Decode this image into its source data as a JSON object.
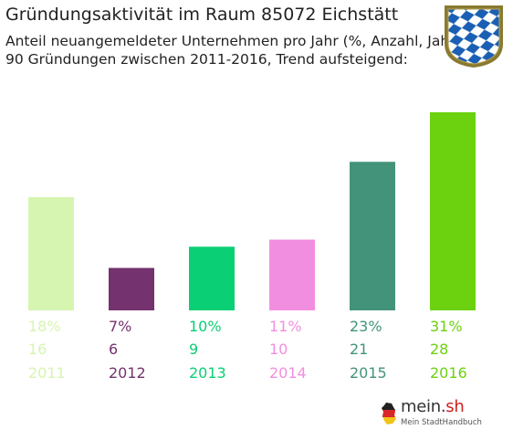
{
  "header": {
    "title": "Gründungsaktivität im Raum 85072 Eichstätt",
    "subtitle_lines": [
      "Anteil neuangemeldeter Unternehmen pro Jahr (%, Anzahl, Jahr)",
      "90 Gründungen zwischen 2011-2016, Trend aufsteigend:"
    ]
  },
  "chart_data": {
    "type": "bar",
    "categories": [
      "2011",
      "2012",
      "2013",
      "2014",
      "2015",
      "2016"
    ],
    "values": [
      16,
      6,
      9,
      10,
      21,
      28
    ],
    "percent_labels": [
      "18%",
      "7%",
      "10%",
      "11%",
      "23%",
      "31%"
    ],
    "count_labels": [
      "16",
      "6",
      "9",
      "10",
      "21",
      "28"
    ],
    "colors": [
      "#d6f5b0",
      "#74326e",
      "#0bcf74",
      "#f28ee0",
      "#43937a",
      "#6cd10e"
    ],
    "ylim": [
      0,
      28
    ],
    "grid": false,
    "legend": "none"
  },
  "crest": {
    "icon": "bavarian-lozenge-crest-icon",
    "colors": [
      "#1a5fb4",
      "#ffffff",
      "#8a7a30"
    ]
  },
  "brand": {
    "name_main": "mein.",
    "name_suffix": "sh",
    "tagline": "Mein StadtHandbuch",
    "icon": "germany-map-flag-icon",
    "suffix_color": "#cc2222"
  }
}
